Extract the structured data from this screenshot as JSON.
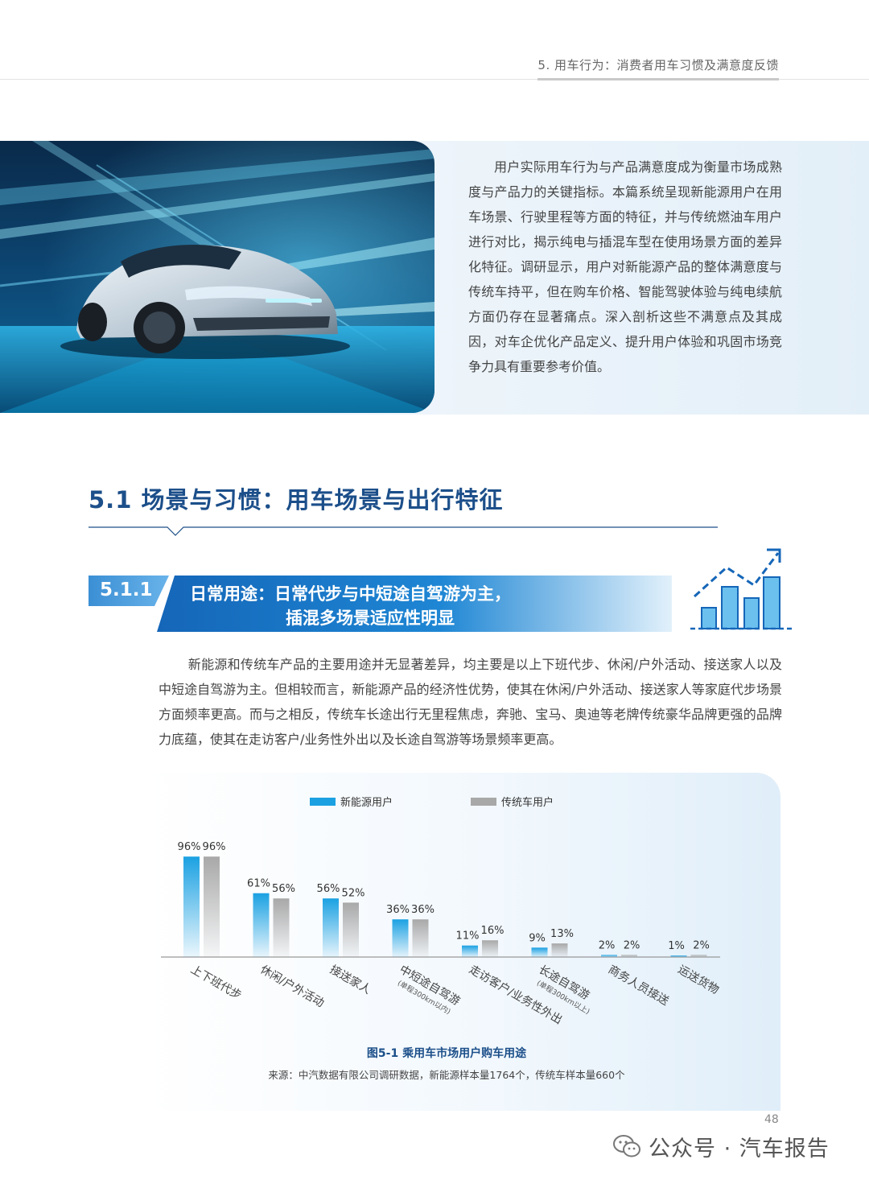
{
  "header": {
    "title": "5. 用车行为：消费者用车习惯及满意度反馈"
  },
  "intro": {
    "paragraph": "用户实际用车行为与产品满意度成为衡量市场成熟度与产品力的关键指标。本篇系统呈现新能源用户在用车场景、行驶里程等方面的特征，并与传统燃油车用户进行对比，揭示纯电与插混车型在使用场景方面的差异化特征。调研显示，用户对新能源产品的整体满意度与传统车持平，但在购车价格、智能驾驶体验与纯电续航方面仍存在显著痛点。深入剖析这些不满意点及其成因，对车企优化产品定义、提升用户体验和巩固市场竞争力具有重要参考价值。"
  },
  "section": {
    "title": "5.1 场景与习惯：用车场景与出行特征"
  },
  "subsection": {
    "number": "5.1.1",
    "title_line1": "日常用途：日常代步与中短途自驾游为主，",
    "title_line2": "插混多场景适应性明显"
  },
  "body": {
    "paragraph": "新能源和传统车产品的主要用途并无显著差异，均主要是以上下班代步、休闲/户外活动、接送家人以及中短途自驾游为主。但相较而言，新能源产品的经济性优势，使其在休闲/户外活动、接送家人等家庭代步场景方面频率更高。而与之相反，传统车长途出行无里程焦虑，奔驰、宝马、奥迪等老牌传统豪华品牌更强的品牌力底蕴，使其在走访客户/业务性外出以及长途自驾游等场景频率更高。"
  },
  "chart_data": {
    "type": "bar",
    "title": "图5-1 乘用车市场用户购车用途",
    "source": "来源：中汽数据有限公司调研数据，新能源样本量1764个，传统车样本量660个",
    "categories": [
      "上下班代步",
      "休闲/户外活动",
      "接送家人",
      "中短途自驾游",
      "走访客户/业务性外出",
      "长途自驾游",
      "商务人员接送",
      "运送货物"
    ],
    "category_notes": [
      "",
      "",
      "",
      "(单程300km以内)",
      "",
      "(单程300km以上)",
      "",
      ""
    ],
    "series": [
      {
        "name": "新能源用户",
        "values": [
          96,
          61,
          56,
          36,
          11,
          9,
          2,
          1
        ],
        "color": "#1ba1e2"
      },
      {
        "name": "传统车用户",
        "values": [
          96,
          56,
          52,
          36,
          16,
          13,
          2,
          2
        ],
        "color": "#a8a8a8"
      }
    ],
    "unit": "%",
    "ylim": [
      0,
      100
    ],
    "legend": "top",
    "grid": false
  },
  "footer": {
    "page_number": "48",
    "watermark": "公众号 · 汽车报告"
  }
}
